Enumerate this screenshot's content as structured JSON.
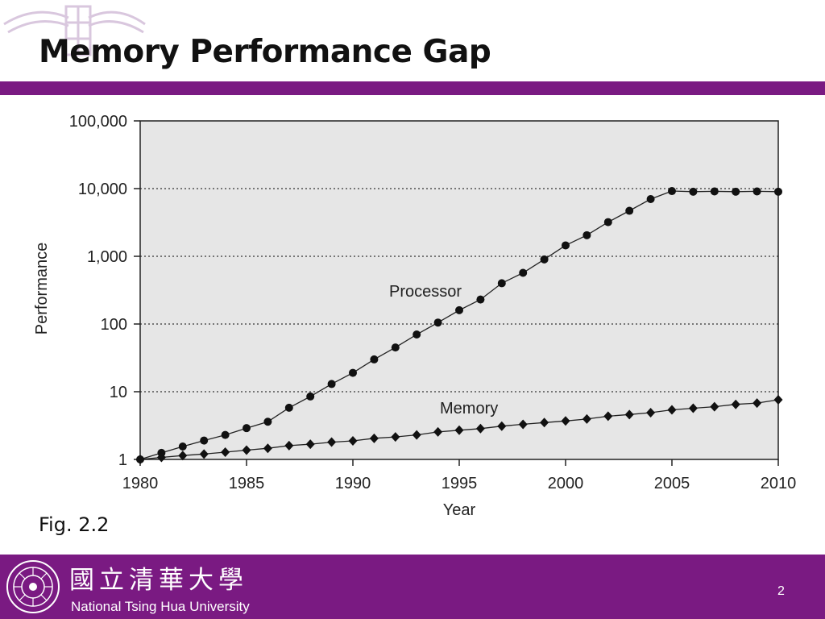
{
  "slide": {
    "title": "Memory Performance Gap",
    "figure_label": "Fig. 2.2",
    "page_number": "2"
  },
  "footer": {
    "university_chinese": "國立清華大學",
    "university_english": "National Tsing Hua University"
  },
  "colors": {
    "brand_purple": "#7a1a82",
    "plot_background": "#e6e6e6"
  },
  "chart_data": {
    "type": "line",
    "title": "",
    "xlabel": "Year",
    "ylabel": "Performance",
    "y_scale": "log",
    "xlim": [
      1980,
      2010
    ],
    "ylim": [
      1,
      100000
    ],
    "x_ticks": [
      "1980",
      "1985",
      "1990",
      "1995",
      "2000",
      "2005",
      "2010"
    ],
    "y_ticks": [
      "1",
      "10",
      "100",
      "1,000",
      "10,000",
      "100,000"
    ],
    "grid": "dotted horizontal lines at each decade",
    "x": [
      1980,
      1981,
      1982,
      1983,
      1984,
      1985,
      1986,
      1987,
      1988,
      1989,
      1990,
      1991,
      1992,
      1993,
      1994,
      1995,
      1996,
      1997,
      1998,
      1999,
      2000,
      2001,
      2002,
      2003,
      2004,
      2005,
      2006,
      2007,
      2008,
      2009,
      2010
    ],
    "series": [
      {
        "name": "Processor",
        "marker": "circle",
        "values": [
          1,
          1.25,
          1.55,
          1.9,
          2.3,
          2.9,
          3.6,
          5.8,
          8.5,
          13,
          19,
          30,
          45,
          70,
          105,
          160,
          230,
          400,
          570,
          900,
          1450,
          2050,
          3200,
          4700,
          7000,
          9200,
          9000,
          9100,
          9000,
          9100,
          9000
        ]
      },
      {
        "name": "Memory",
        "marker": "diamond",
        "values": [
          1,
          1.07,
          1.14,
          1.2,
          1.28,
          1.37,
          1.46,
          1.6,
          1.68,
          1.8,
          1.88,
          2.05,
          2.15,
          2.3,
          2.55,
          2.7,
          2.85,
          3.1,
          3.3,
          3.5,
          3.7,
          3.95,
          4.35,
          4.6,
          4.9,
          5.4,
          5.7,
          6.0,
          6.5,
          6.8,
          7.6
        ]
      }
    ]
  }
}
